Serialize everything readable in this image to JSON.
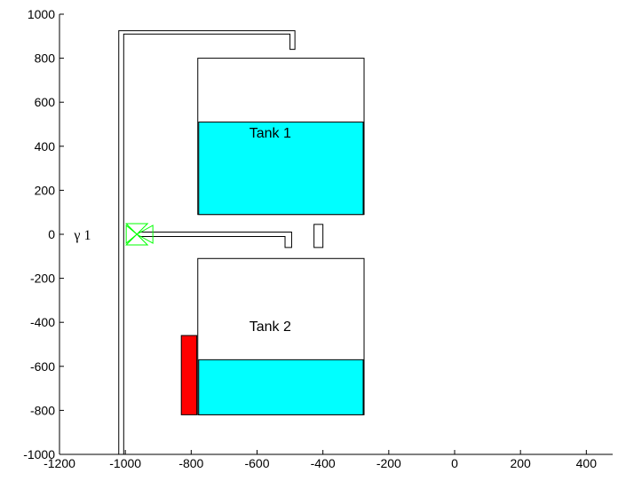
{
  "chart_data": {
    "type": "diagram",
    "xlim": [
      -1200,
      480
    ],
    "ylim": [
      -1000,
      1000
    ],
    "x_ticks": [
      -1200,
      -1000,
      -800,
      -600,
      -400,
      -200,
      0,
      200,
      400
    ],
    "y_ticks": [
      1000,
      800,
      600,
      400,
      200,
      0,
      -200,
      -400,
      -600,
      -800,
      -1000
    ],
    "tanks": [
      {
        "label": "Tank 1",
        "x_left": -780,
        "x_right": -275,
        "y_bottom": 90,
        "y_top": 800,
        "water_level": 510
      },
      {
        "label": "Tank 2",
        "x_left": -780,
        "x_right": -275,
        "y_bottom": -820,
        "y_top": -110,
        "water_level": -570
      }
    ],
    "valve": {
      "label": "γ 1",
      "x": -965,
      "y": 0
    },
    "colors": {
      "water": "#00ffff",
      "heater": "#ff0000",
      "valve": "#00ff00",
      "outline": "#000000"
    }
  }
}
